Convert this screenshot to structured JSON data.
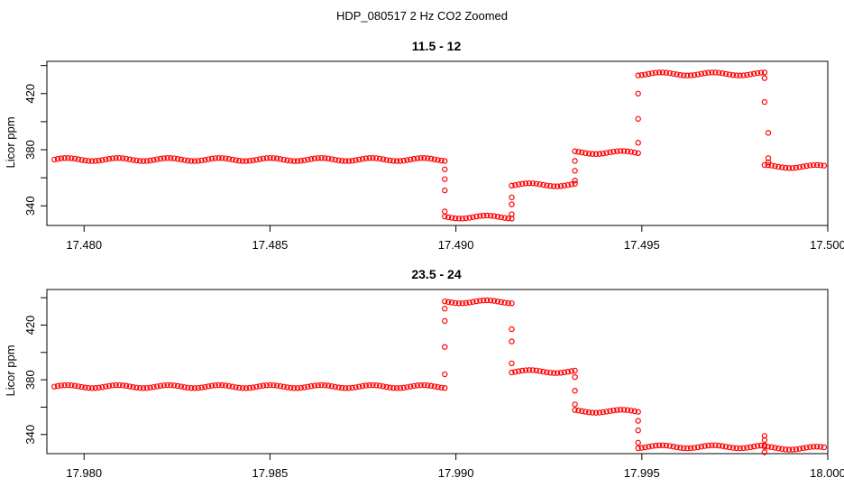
{
  "figure": {
    "title": "HDP_080517  2 Hz CO2 Zoomed",
    "point_color": "#ff0000"
  },
  "chart_data": [
    {
      "type": "scatter",
      "title": "11.5 - 12",
      "xlabel": "",
      "ylabel": "Licor ppm",
      "xlim": [
        17.479,
        17.5
      ],
      "ylim": [
        326,
        443
      ],
      "xticks": [
        "17.480",
        "17.485",
        "17.490",
        "17.495",
        "17.500"
      ],
      "yticks": [
        "340",
        "380",
        "420"
      ],
      "grid": false,
      "segments": [
        {
          "x_start": 17.4792,
          "x_end": 17.4897,
          "y": 373
        },
        {
          "x_start": 17.4897,
          "x_end": 17.4915,
          "y": 332
        },
        {
          "x_start": 17.4915,
          "x_end": 17.4932,
          "y": 355
        },
        {
          "x_start": 17.4932,
          "x_end": 17.4949,
          "y": 378
        },
        {
          "x_start": 17.4949,
          "x_end": 17.4983,
          "y": 434
        },
        {
          "x_start": 17.4983,
          "x_end": 17.4999,
          "y": 368
        }
      ],
      "transition_points": [
        {
          "x": 17.4897,
          "y": 366
        },
        {
          "x": 17.4897,
          "y": 359
        },
        {
          "x": 17.4897,
          "y": 351
        },
        {
          "x": 17.4897,
          "y": 336
        },
        {
          "x": 17.4915,
          "y": 334
        },
        {
          "x": 17.4915,
          "y": 341
        },
        {
          "x": 17.4915,
          "y": 346
        },
        {
          "x": 17.4932,
          "y": 358
        },
        {
          "x": 17.4932,
          "y": 365
        },
        {
          "x": 17.4932,
          "y": 372
        },
        {
          "x": 17.4949,
          "y": 385
        },
        {
          "x": 17.4949,
          "y": 402
        },
        {
          "x": 17.4949,
          "y": 420
        },
        {
          "x": 17.4983,
          "y": 431
        },
        {
          "x": 17.4983,
          "y": 414
        },
        {
          "x": 17.4984,
          "y": 392
        },
        {
          "x": 17.4984,
          "y": 374
        },
        {
          "x": 17.4984,
          "y": 371
        }
      ]
    },
    {
      "type": "scatter",
      "title": "23.5 - 24",
      "xlabel": "",
      "ylabel": "Licor ppm",
      "xlim": [
        17.979,
        18.0
      ],
      "ylim": [
        326,
        446
      ],
      "xticks": [
        "17.980",
        "17.985",
        "17.990",
        "17.995",
        "18.000"
      ],
      "yticks": [
        "340",
        "380",
        "420"
      ],
      "grid": false,
      "segments": [
        {
          "x_start": 17.9792,
          "x_end": 17.9897,
          "y": 375
        },
        {
          "x_start": 17.9897,
          "x_end": 17.9915,
          "y": 437
        },
        {
          "x_start": 17.9915,
          "x_end": 17.9932,
          "y": 386
        },
        {
          "x_start": 17.9932,
          "x_end": 17.9949,
          "y": 357
        },
        {
          "x_start": 17.9949,
          "x_end": 17.9983,
          "y": 331
        },
        {
          "x_start": 17.9983,
          "x_end": 17.9999,
          "y": 330
        }
      ],
      "transition_points": [
        {
          "x": 17.9897,
          "y": 384
        },
        {
          "x": 17.9897,
          "y": 404
        },
        {
          "x": 17.9897,
          "y": 423
        },
        {
          "x": 17.9897,
          "y": 432
        },
        {
          "x": 17.9915,
          "y": 417
        },
        {
          "x": 17.9915,
          "y": 408
        },
        {
          "x": 17.9915,
          "y": 392
        },
        {
          "x": 17.9932,
          "y": 382
        },
        {
          "x": 17.9932,
          "y": 372
        },
        {
          "x": 17.9932,
          "y": 362
        },
        {
          "x": 17.9949,
          "y": 350
        },
        {
          "x": 17.9949,
          "y": 343
        },
        {
          "x": 17.9949,
          "y": 334
        },
        {
          "x": 17.9983,
          "y": 339
        },
        {
          "x": 17.9983,
          "y": 336
        },
        {
          "x": 17.9983,
          "y": 327
        }
      ]
    }
  ]
}
